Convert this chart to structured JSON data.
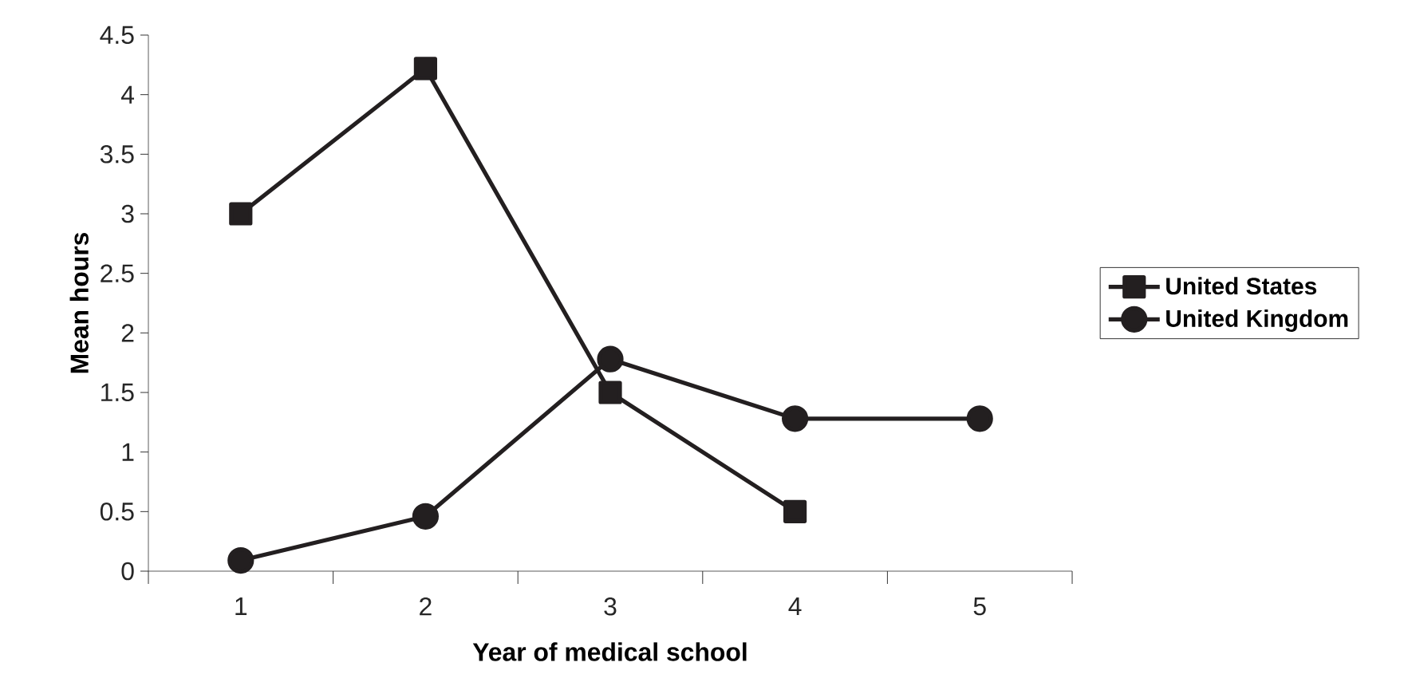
{
  "chart_data": {
    "type": "line",
    "xlabel": "Year of medical school",
    "ylabel": "Mean hours",
    "categories": [
      "1",
      "2",
      "3",
      "4",
      "5"
    ],
    "ylim": [
      0,
      4.5
    ],
    "yticks": [
      0,
      0.5,
      1,
      1.5,
      2,
      2.5,
      3,
      3.5,
      4,
      4.5
    ],
    "legend": "right",
    "grid": false,
    "line_style": "solid",
    "series": [
      {
        "name": "United States",
        "color": "#231f20",
        "marker": "square",
        "values": [
          3.0,
          4.22,
          1.5,
          0.5,
          null
        ]
      },
      {
        "name": "United Kingdom",
        "color": "#231f20",
        "marker": "circle",
        "values": [
          0.09,
          0.46,
          1.78,
          1.28,
          1.28
        ]
      }
    ]
  }
}
